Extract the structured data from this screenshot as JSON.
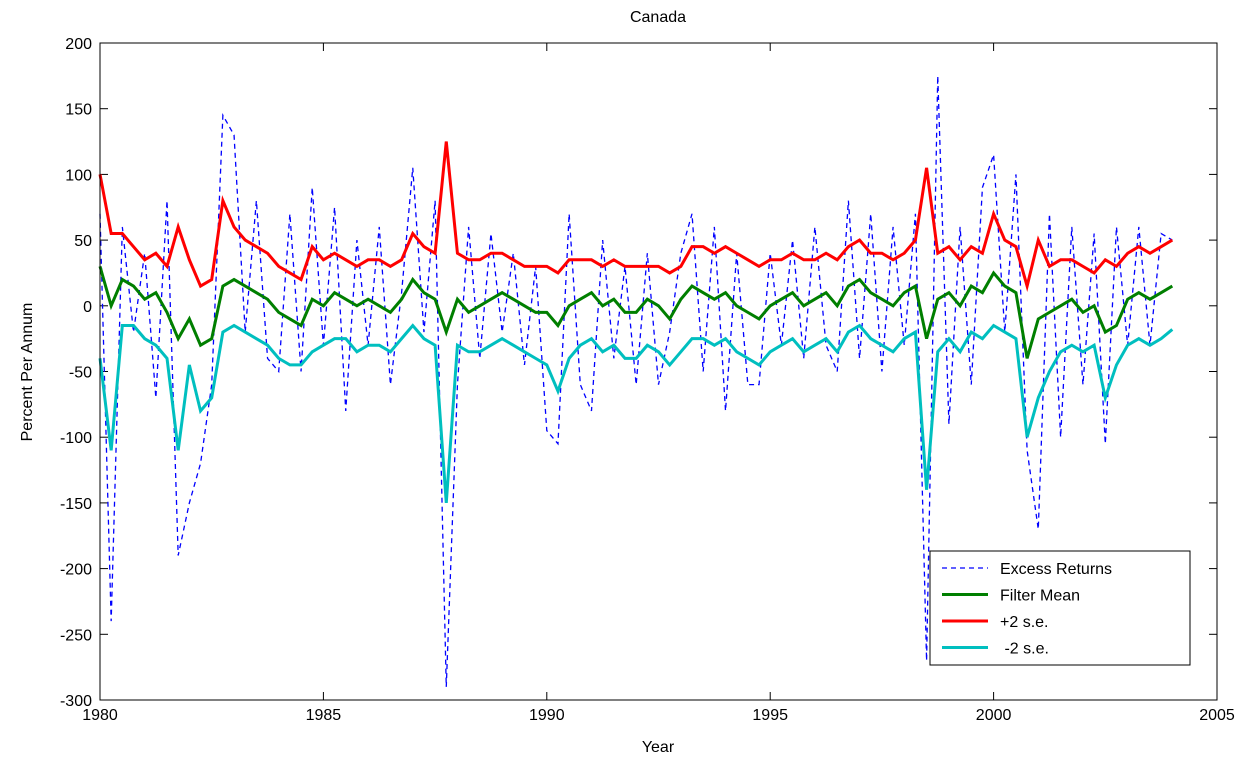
{
  "chart_data": {
    "type": "line",
    "title": "Canada",
    "xlabel": "Year",
    "ylabel": "Percent Per Annum",
    "x": [
      1980,
      1980.25,
      1980.5,
      1980.75,
      1981,
      1981.25,
      1981.5,
      1981.75,
      1982,
      1982.25,
      1982.5,
      1982.75,
      1983,
      1983.25,
      1983.5,
      1983.75,
      1984,
      1984.25,
      1984.5,
      1984.75,
      1985,
      1985.25,
      1985.5,
      1985.75,
      1986,
      1986.25,
      1986.5,
      1986.75,
      1987,
      1987.25,
      1987.5,
      1987.75,
      1988,
      1988.25,
      1988.5,
      1988.75,
      1989,
      1989.25,
      1989.5,
      1989.75,
      1990,
      1990.25,
      1990.5,
      1990.75,
      1991,
      1991.25,
      1991.5,
      1991.75,
      1992,
      1992.25,
      1992.5,
      1992.75,
      1993,
      1993.25,
      1993.5,
      1993.75,
      1994,
      1994.25,
      1994.5,
      1994.75,
      1995,
      1995.25,
      1995.5,
      1995.75,
      1996,
      1996.25,
      1996.5,
      1996.75,
      1997,
      1997.25,
      1997.5,
      1997.75,
      1998,
      1998.25,
      1998.5,
      1998.75,
      1999,
      1999.25,
      1999.5,
      1999.75,
      2000,
      2000.25,
      2000.5,
      2000.75,
      2001,
      2001.25,
      2001.5,
      2001.75,
      2002,
      2002.25,
      2002.5,
      2002.75,
      2003,
      2003.25,
      2003.5,
      2003.75,
      2004
    ],
    "series": [
      {
        "name": "Excess Returns",
        "color": "#0000ff",
        "linestyle": "dashed",
        "values": [
          70,
          -240,
          60,
          -20,
          40,
          -70,
          80,
          -190,
          -150,
          -120,
          -60,
          145,
          130,
          -20,
          80,
          -40,
          -50,
          70,
          -50,
          90,
          -30,
          75,
          -80,
          50,
          -30,
          60,
          -60,
          10,
          105,
          -20,
          80,
          -290,
          -60,
          60,
          -40,
          55,
          -20,
          40,
          -45,
          30,
          -95,
          -105,
          70,
          -60,
          -80,
          50,
          -40,
          30,
          -60,
          40,
          -60,
          -20,
          40,
          70,
          -50,
          60,
          -80,
          40,
          -60,
          -60,
          40,
          -30,
          50,
          -40,
          60,
          -30,
          -50,
          80,
          -40,
          70,
          -50,
          60,
          -30,
          70,
          -270,
          175,
          -90,
          60,
          -60,
          90,
          115,
          -20,
          100,
          -110,
          -170,
          70,
          -100,
          60,
          -60,
          55,
          -105,
          60,
          -30,
          60,
          -30,
          55,
          50
        ]
      },
      {
        "name": "Filter Mean",
        "color": "#007f00",
        "linestyle": "solid",
        "values": [
          30,
          0,
          20,
          15,
          5,
          10,
          -5,
          -25,
          -10,
          -30,
          -25,
          15,
          20,
          15,
          10,
          5,
          -5,
          -10,
          -15,
          5,
          0,
          10,
          5,
          0,
          5,
          0,
          -5,
          5,
          20,
          10,
          5,
          -20,
          5,
          -5,
          0,
          5,
          10,
          5,
          0,
          -5,
          -5,
          -15,
          0,
          5,
          10,
          0,
          5,
          -5,
          -5,
          5,
          0,
          -10,
          5,
          15,
          10,
          5,
          10,
          0,
          -5,
          -10,
          0,
          5,
          10,
          0,
          5,
          10,
          0,
          15,
          20,
          10,
          5,
          0,
          10,
          15,
          -25,
          5,
          10,
          0,
          15,
          10,
          25,
          15,
          10,
          -40,
          -10,
          -5,
          0,
          5,
          -5,
          0,
          -20,
          -15,
          5,
          10,
          5,
          10,
          15
        ]
      },
      {
        "name": "+2 s.e.",
        "color": "#ff0000",
        "linestyle": "solid",
        "values": [
          100,
          55,
          55,
          45,
          35,
          40,
          30,
          60,
          35,
          15,
          20,
          80,
          60,
          50,
          45,
          40,
          30,
          25,
          20,
          45,
          35,
          40,
          35,
          30,
          35,
          35,
          30,
          35,
          55,
          45,
          40,
          125,
          40,
          35,
          35,
          40,
          40,
          35,
          30,
          30,
          30,
          25,
          35,
          35,
          35,
          30,
          35,
          30,
          30,
          30,
          30,
          25,
          30,
          45,
          45,
          40,
          45,
          40,
          35,
          30,
          35,
          35,
          40,
          35,
          35,
          40,
          35,
          45,
          50,
          40,
          40,
          35,
          40,
          50,
          105,
          40,
          45,
          35,
          45,
          40,
          70,
          50,
          45,
          15,
          50,
          30,
          35,
          35,
          30,
          25,
          35,
          30,
          40,
          45,
          40,
          45,
          50
        ]
      },
      {
        "name": " -2 s.e.",
        "color": "#00bfbf",
        "linestyle": "solid",
        "values": [
          -40,
          -110,
          -15,
          -15,
          -25,
          -30,
          -40,
          -110,
          -45,
          -80,
          -70,
          -20,
          -15,
          -20,
          -25,
          -30,
          -40,
          -45,
          -45,
          -35,
          -30,
          -25,
          -25,
          -35,
          -30,
          -30,
          -35,
          -25,
          -15,
          -25,
          -30,
          -150,
          -30,
          -35,
          -35,
          -30,
          -25,
          -30,
          -35,
          -40,
          -45,
          -65,
          -40,
          -30,
          -25,
          -35,
          -30,
          -40,
          -40,
          -30,
          -35,
          -45,
          -35,
          -25,
          -25,
          -30,
          -25,
          -35,
          -40,
          -45,
          -35,
          -30,
          -25,
          -35,
          -30,
          -25,
          -35,
          -20,
          -15,
          -25,
          -30,
          -35,
          -25,
          -20,
          -140,
          -35,
          -25,
          -35,
          -20,
          -25,
          -15,
          -20,
          -25,
          -100,
          -70,
          -50,
          -35,
          -30,
          -35,
          -30,
          -70,
          -45,
          -30,
          -25,
          -30,
          -25,
          -18
        ]
      }
    ],
    "xlim": [
      1980,
      2005
    ],
    "xticks": [
      1980,
      1985,
      1990,
      1995,
      2000,
      2005
    ],
    "ylim": [
      -300,
      200
    ],
    "yticks": [
      -300,
      -250,
      -200,
      -150,
      -100,
      -50,
      0,
      50,
      100,
      150,
      200
    ],
    "grid": false,
    "legend": "lower right"
  }
}
